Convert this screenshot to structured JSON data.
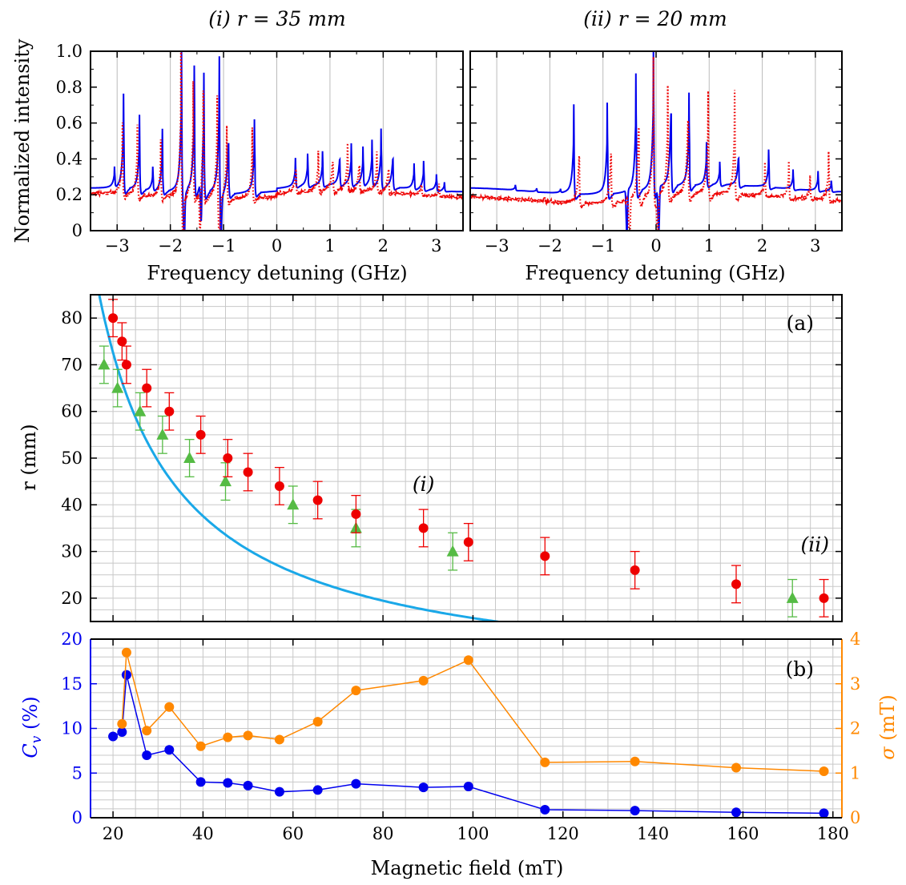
{
  "chart_data": [
    {
      "type": "line",
      "title": "(i) r = 35  mm",
      "xlabel": "Frequency detuning (GHz)",
      "ylabel": "Normalized intensity",
      "xlim": [
        -3.5,
        3.5
      ],
      "ylim": [
        0,
        1.0
      ],
      "xticks": [
        "−3",
        "−2",
        "−1",
        "0",
        "1",
        "2",
        "3"
      ],
      "yticks": [
        "0",
        "0.2",
        "0.4",
        "0.6",
        "0.8",
        "1.0"
      ],
      "grid": "vertical",
      "series": [
        {
          "style": "solid",
          "color": "#0000ee",
          "baseline": 0.22,
          "peaks": [
            {
              "x": -3.05,
              "h": 0.33
            },
            {
              "x": -2.88,
              "h": 0.75
            },
            {
              "x": -2.58,
              "h": 0.64
            },
            {
              "x": -2.33,
              "h": 0.35
            },
            {
              "x": -2.15,
              "h": 0.57
            },
            {
              "x": -1.79,
              "h": 1.0
            },
            {
              "x": -1.55,
              "h": 0.92
            },
            {
              "x": -1.37,
              "h": 0.89
            },
            {
              "x": -1.08,
              "h": 0.99
            },
            {
              "x": -0.91,
              "h": 0.65
            },
            {
              "x": -0.42,
              "h": 0.63
            },
            {
              "x": 0.35,
              "h": 0.38
            },
            {
              "x": 0.58,
              "h": 0.4
            },
            {
              "x": 0.86,
              "h": 0.41
            },
            {
              "x": 1.18,
              "h": 0.43
            },
            {
              "x": 1.4,
              "h": 0.45
            },
            {
              "x": 1.62,
              "h": 0.43
            },
            {
              "x": 1.79,
              "h": 0.47
            },
            {
              "x": 1.96,
              "h": 0.54
            },
            {
              "x": 2.18,
              "h": 0.46
            },
            {
              "x": 2.58,
              "h": 0.36
            },
            {
              "x": 2.76,
              "h": 0.38
            },
            {
              "x": 3.0,
              "h": 0.31
            },
            {
              "x": 3.15,
              "h": 0.27
            }
          ],
          "dips": [
            -1.74,
            -1.42,
            -1.05
          ]
        },
        {
          "style": "dotted",
          "color": "#ee0000",
          "baseline": 0.19,
          "peaks": [
            {
              "x": -2.9,
              "h": 0.58
            },
            {
              "x": -2.62,
              "h": 0.58
            },
            {
              "x": -2.18,
              "h": 0.5
            },
            {
              "x": -1.8,
              "h": 1.0
            },
            {
              "x": -1.57,
              "h": 0.83
            },
            {
              "x": -1.38,
              "h": 0.8
            },
            {
              "x": -1.12,
              "h": 0.77
            },
            {
              "x": -0.94,
              "h": 0.6
            },
            {
              "x": -0.46,
              "h": 0.58
            },
            {
              "x": 0.36,
              "h": 0.38
            },
            {
              "x": 0.78,
              "h": 0.42
            },
            {
              "x": 1.05,
              "h": 0.44
            },
            {
              "x": 1.33,
              "h": 0.46
            },
            {
              "x": 1.55,
              "h": 0.41
            },
            {
              "x": 1.88,
              "h": 0.42
            },
            {
              "x": 2.1,
              "h": 0.39
            },
            {
              "x": 2.72,
              "h": 0.28
            },
            {
              "x": 3.05,
              "h": 0.25
            }
          ],
          "dips": [
            -1.76,
            -1.44,
            -1.08
          ]
        }
      ]
    },
    {
      "type": "line",
      "title": "(ii) r = 20  mm",
      "xlabel": "Frequency detuning (GHz)",
      "ylabel": "",
      "xlim": [
        -3.5,
        3.5
      ],
      "ylim": [
        0,
        1.0
      ],
      "xticks": [
        "−3",
        "−2",
        "−1",
        "0",
        "1",
        "2",
        "3"
      ],
      "grid": "vertical",
      "series": [
        {
          "style": "solid",
          "color": "#0000ee",
          "baseline": 0.22,
          "peaks": [
            {
              "x": -2.65,
              "h": 0.25
            },
            {
              "x": -2.25,
              "h": 0.24
            },
            {
              "x": -1.8,
              "h": 0.24
            },
            {
              "x": -1.55,
              "h": 0.72
            },
            {
              "x": -0.92,
              "h": 0.73
            },
            {
              "x": -0.38,
              "h": 0.88
            },
            {
              "x": -0.05,
              "h": 1.0
            },
            {
              "x": 0.28,
              "h": 0.84
            },
            {
              "x": 0.62,
              "h": 0.74
            },
            {
              "x": 0.95,
              "h": 0.46
            },
            {
              "x": 1.2,
              "h": 0.35
            },
            {
              "x": 1.55,
              "h": 0.45
            },
            {
              "x": 2.12,
              "h": 0.43
            },
            {
              "x": 2.58,
              "h": 0.33
            },
            {
              "x": 3.05,
              "h": 0.33
            },
            {
              "x": 3.3,
              "h": 0.28
            }
          ],
          "dips": [
            -0.55,
            0.05
          ]
        },
        {
          "style": "dotted",
          "color": "#ee0000",
          "baseline": 0.17,
          "peaks": [
            {
              "x": -2.1,
              "h": 0.2
            },
            {
              "x": -1.45,
              "h": 0.57
            },
            {
              "x": -0.85,
              "h": 0.58
            },
            {
              "x": -0.33,
              "h": 0.77
            },
            {
              "x": -0.05,
              "h": 0.96
            },
            {
              "x": 0.22,
              "h": 0.79
            },
            {
              "x": 0.6,
              "h": 0.81
            },
            {
              "x": 0.98,
              "h": 0.75
            },
            {
              "x": 1.48,
              "h": 0.76
            },
            {
              "x": 2.05,
              "h": 0.35
            },
            {
              "x": 2.5,
              "h": 0.37
            },
            {
              "x": 2.9,
              "h": 0.3
            },
            {
              "x": 3.25,
              "h": 0.45
            }
          ],
          "dips": [
            -0.5,
            0.03
          ]
        }
      ]
    },
    {
      "type": "scatter",
      "title": "",
      "panel_label": "(a)",
      "xlabel": "",
      "ylabel": "r (mm)",
      "xlim": [
        15,
        182
      ],
      "ylim": [
        15,
        85
      ],
      "yticks": [
        "20",
        "30",
        "40",
        "50",
        "60",
        "70",
        "80"
      ],
      "grid": "both",
      "annotations": [
        {
          "text": "(i)",
          "x": 89,
          "y": 43
        },
        {
          "text": "(ii)",
          "x": 176,
          "y": 30
        }
      ],
      "fit": {
        "color": "#1aa8e8",
        "x_from": 16,
        "x_to": 182,
        "a": 1250,
        "b": 0.95
      },
      "series": [
        {
          "marker": "circle",
          "color": "#ee0000",
          "x": [
            20,
            22,
            23,
            27.5,
            32.5,
            39.5,
            45.5,
            50,
            57,
            65.5,
            74,
            89,
            99,
            116,
            136,
            158.5,
            178
          ],
          "y": [
            80,
            75,
            70,
            65,
            60,
            55,
            50,
            47,
            44,
            41,
            38,
            35,
            32,
            29,
            26,
            23,
            20
          ],
          "err": 4
        },
        {
          "marker": "triangle",
          "color": "#55bb44",
          "x": [
            18,
            21,
            26,
            31,
            37,
            45,
            60,
            74,
            95.5,
            171
          ],
          "y": [
            70,
            65,
            60,
            55,
            50,
            45,
            40,
            35,
            30,
            20
          ],
          "err": 4
        }
      ]
    },
    {
      "type": "line",
      "title": "",
      "panel_label": "(b)",
      "xlabel": "Magnetic field (mT)",
      "ylabel": "C_v (%)",
      "y2label": "σ (mT)",
      "xlim": [
        15,
        182
      ],
      "ylim": [
        0,
        20
      ],
      "y2lim": [
        0,
        4
      ],
      "xticks": [
        "20",
        "40",
        "60",
        "80",
        "100",
        "120",
        "140",
        "160",
        "180"
      ],
      "yticks": [
        "0",
        "5",
        "10",
        "15",
        "20"
      ],
      "y2ticks": [
        "0",
        "1",
        "2",
        "3",
        "4"
      ],
      "grid": "both",
      "series": [
        {
          "axis": "left",
          "color": "#0000ee",
          "x": [
            20,
            22,
            23,
            27.5,
            32.5,
            39.5,
            45.5,
            50,
            57,
            65.5,
            74,
            89,
            99,
            116,
            136,
            158.5,
            178
          ],
          "y": [
            9.1,
            9.6,
            16.0,
            7.0,
            7.6,
            4.0,
            3.9,
            3.6,
            2.9,
            3.1,
            3.8,
            3.4,
            3.5,
            0.9,
            0.8,
            0.6,
            0.5
          ]
        },
        {
          "axis": "right",
          "color": "#ff8800",
          "x": [
            22,
            23,
            27.5,
            32.5,
            39.5,
            45.5,
            50,
            57,
            65.5,
            74,
            89,
            99,
            116,
            136,
            158.5,
            178
          ],
          "y": [
            2.1,
            3.7,
            1.95,
            2.48,
            1.6,
            1.8,
            1.84,
            1.75,
            2.15,
            2.85,
            3.07,
            3.53,
            1.24,
            1.26,
            1.12,
            1.04
          ]
        }
      ]
    }
  ]
}
